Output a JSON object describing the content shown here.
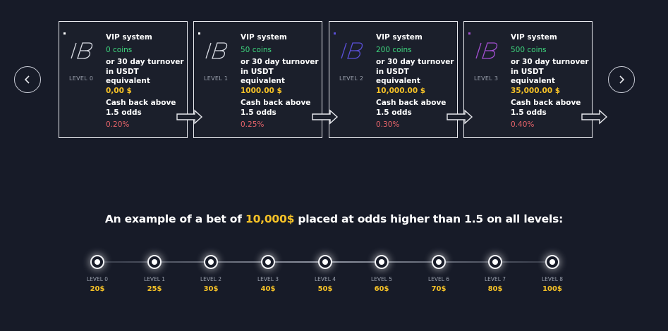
{
  "nav": {
    "prev_icon": "chevron-left-icon",
    "next_icon": "chevron-right-icon"
  },
  "cards": [
    {
      "level": "LEVEL 0",
      "title": "VIP system",
      "coins": "0 coins",
      "turnover_label": "or 30 day turnover in USDT equivalent",
      "usdt": "0,00 $",
      "cashback_label": "Cash back above 1.5 odds",
      "percent": "0.20%",
      "logo_color": "#d8dbe3"
    },
    {
      "level": "LEVEL 1",
      "title": "VIP system",
      "coins": "50 coins",
      "turnover_label": "or 30 day turnover in USDT equivalent",
      "usdt": "1000.00 $",
      "cashback_label": "Cash back above 1.5 odds",
      "percent": "0.25%",
      "logo_color": "#d8dbe3"
    },
    {
      "level": "LEVEL 2",
      "title": "VIP system",
      "coins": "200 coins",
      "turnover_label": "or 30 day turnover in USDT equivalent",
      "usdt": "10,000.00 $",
      "cashback_label": "Cash back above 1.5 odds",
      "percent": "0.30%",
      "logo_color": "#5a4fd8"
    },
    {
      "level": "LEVEL 3",
      "title": "VIP system",
      "coins": "500 coins",
      "turnover_label": "or 30 day turnover in USDT equivalent",
      "usdt": "35,000.00 $",
      "cashback_label": "Cash back above 1.5 odds",
      "percent": "0.40%",
      "logo_color": "#a24fd0"
    }
  ],
  "headline": {
    "before": "An example of a bet of ",
    "amount": "10,000$",
    "after": " placed at odds higher than 1.5 on all levels:"
  },
  "timeline": [
    {
      "level": "LEVEL 0",
      "value": "20$"
    },
    {
      "level": "LEVEL 1",
      "value": "25$"
    },
    {
      "level": "LEVEL 2",
      "value": "30$"
    },
    {
      "level": "LEVEL 3",
      "value": "40$"
    },
    {
      "level": "LEVEL 4",
      "value": "50$"
    },
    {
      "level": "LEVEL 5",
      "value": "60$"
    },
    {
      "level": "LEVEL 6",
      "value": "70$"
    },
    {
      "level": "LEVEL 7",
      "value": "80$"
    },
    {
      "level": "LEVEL 8",
      "value": "100$"
    }
  ],
  "colors": {
    "background": "#171b28",
    "green": "#3ed67e",
    "gold": "#f6c227",
    "red": "#e8646a"
  }
}
